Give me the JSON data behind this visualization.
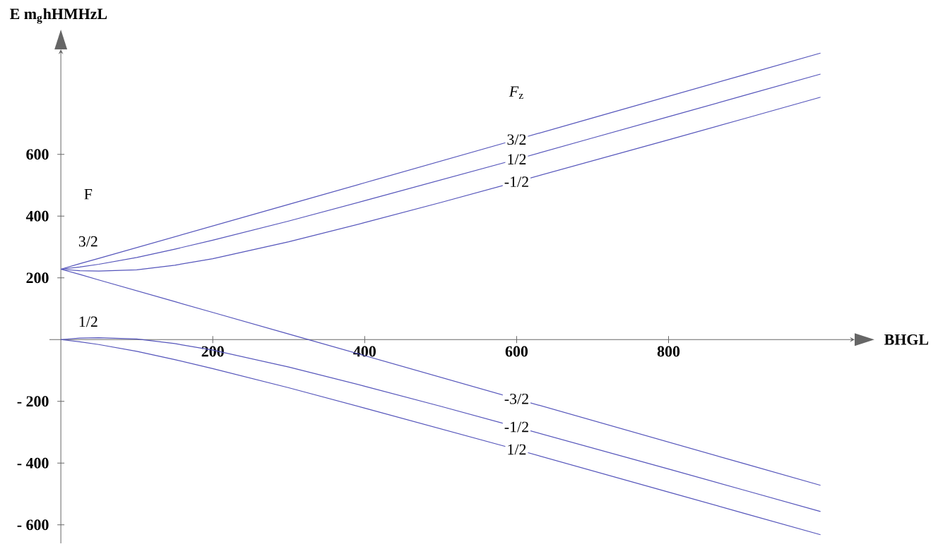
{
  "chart_data": {
    "type": "line",
    "xlabel": "BHGL",
    "ylabel": "E m$_{g}$hHMHzL",
    "legend_title": "*F*$_{z}$",
    "annotations": [
      "F",
      "3/2",
      "1/2"
    ],
    "x": [
      0,
      25,
      50,
      100,
      150,
      200,
      300,
      400,
      500,
      600,
      700,
      800,
      900,
      1000
    ],
    "series": [
      {
        "name": "3/2",
        "color": "#5555bb",
        "values": [
          228,
          246,
          263,
          298,
          333,
          368,
          438,
          508,
          578,
          648,
          718,
          788,
          858,
          928
        ]
      },
      {
        "name": "1/2",
        "color": "#5555bb",
        "values": [
          228,
          235,
          244,
          266,
          293,
          322,
          384,
          450,
          517,
          584,
          653,
          722,
          791,
          860
        ]
      },
      {
        "name": "-1/2",
        "color": "#5555bb",
        "values": [
          228,
          223,
          222,
          226,
          241,
          262,
          317,
          379,
          444,
          511,
          579,
          647,
          716,
          785
        ]
      },
      {
        "name": "-3/2",
        "color": "#5555bb",
        "values": [
          228,
          211,
          193,
          158,
          123,
          88,
          18,
          -52,
          -122,
          -192,
          -262,
          -332,
          -402,
          -472
        ]
      },
      {
        "name": "-1/2",
        "color": "#5555bb",
        "values": [
          0,
          5,
          6,
          2,
          -13,
          -34,
          -89,
          -151,
          -216,
          -283,
          -351,
          -419,
          -488,
          -557
        ]
      },
      {
        "name": "1/2",
        "color": "#5555bb",
        "values": [
          0,
          -7,
          -16,
          -38,
          -65,
          -94,
          -156,
          -222,
          -289,
          -356,
          -425,
          -494,
          -563,
          -632
        ]
      }
    ],
    "xlim": [
      -15,
      1045
    ],
    "ylim": [
      -660,
      940
    ],
    "xticks": [
      200,
      400,
      600,
      800
    ],
    "yticks": [
      {
        "value": -600,
        "label": "- 600"
      },
      {
        "value": -400,
        "label": "- 400"
      },
      {
        "value": -200,
        "label": "- 200"
      },
      200,
      400,
      600
    ],
    "marker": "none",
    "line_style": "solid"
  }
}
